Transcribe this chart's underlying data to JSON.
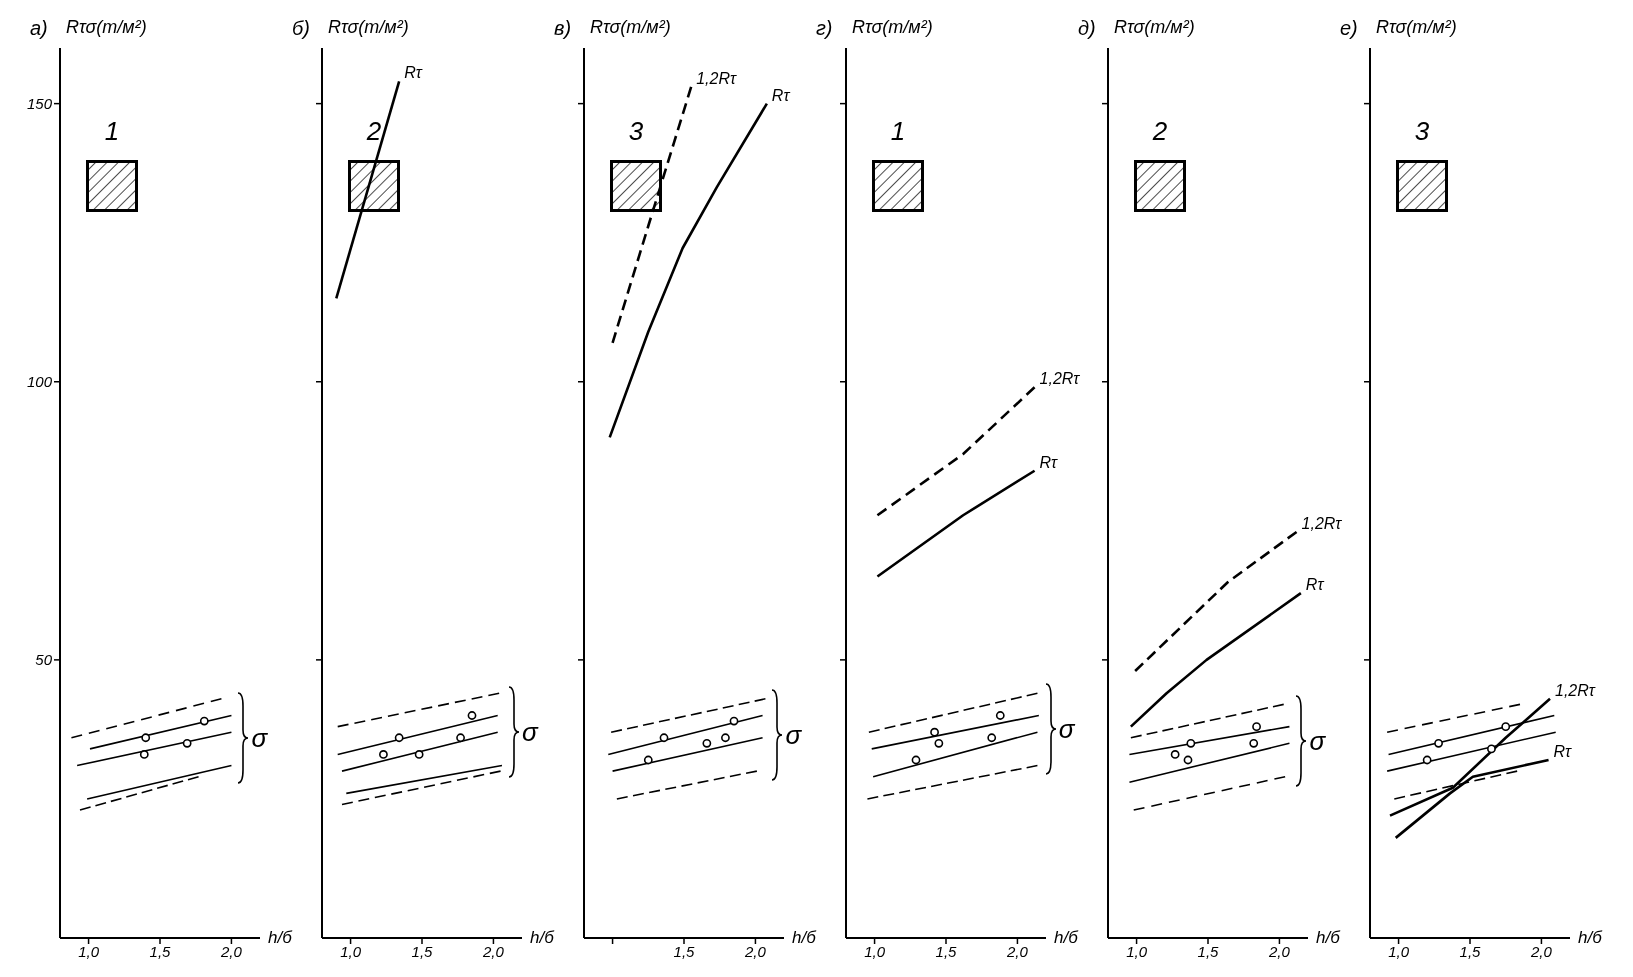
{
  "chart_data": [
    {
      "type": "line",
      "title": "а)",
      "ylabel": "Rτσ(т/м²)",
      "xlabel": "h/б",
      "xlim": [
        0.8,
        2.2
      ],
      "ylim": [
        0,
        160
      ],
      "xticks": [
        {
          "value": 1,
          "label": "1,0"
        },
        {
          "value": 1.5,
          "label": "1,5"
        },
        {
          "value": 2,
          "label": "2,0"
        }
      ],
      "yticks": [
        50,
        100,
        150
      ],
      "annotations": [
        "1",
        "σ"
      ],
      "series": [
        {
          "color": "#000000",
          "line_style": "dashed",
          "x": [
            0.88,
            1.93
          ],
          "values": [
            36,
            43
          ]
        },
        {
          "color": "#000000",
          "x": [
            1.01,
            2.0
          ],
          "values": [
            34,
            40
          ]
        },
        {
          "color": "#000000",
          "x": [
            0.92,
            2.0
          ],
          "values": [
            31,
            37
          ]
        },
        {
          "color": "#000000",
          "x": [
            0.99,
            2.0
          ],
          "values": [
            25,
            31
          ]
        },
        {
          "color": "#000000",
          "line_style": "dashed",
          "x": [
            0.94,
            1.77
          ],
          "values": [
            23,
            29
          ]
        },
        {
          "type": "scatter",
          "marker": "circle",
          "color": "#000000",
          "x": [
            1.39,
            1.4,
            1.69,
            1.81
          ],
          "values": [
            33,
            36,
            35,
            39
          ]
        }
      ]
    },
    {
      "type": "line",
      "title": "б)",
      "ylabel": "Rτσ(т/м²)",
      "xlabel": "h/б",
      "xlim": [
        0.8,
        2.2
      ],
      "ylim": [
        0,
        160
      ],
      "xticks": [
        {
          "value": 1,
          "label": "1,0"
        },
        {
          "value": 1.5,
          "label": "1,5"
        },
        {
          "value": 2,
          "label": "2,0"
        }
      ],
      "yticks": [
        {
          "value": 50,
          "label": null
        },
        {
          "value": 100,
          "label": null
        },
        {
          "value": 150,
          "label": null
        }
      ],
      "tick_labels": "x",
      "annotations": [
        "2",
        "σ"
      ],
      "series": [
        {
          "name": "Rτ",
          "color": "#000000",
          "x": [
            0.9,
            1.34
          ],
          "values": [
            115,
            154
          ]
        },
        {
          "color": "#000000",
          "line_style": "dashed",
          "x": [
            0.91,
            2.04
          ],
          "values": [
            38,
            44
          ]
        },
        {
          "color": "#000000",
          "x": [
            0.91,
            2.03
          ],
          "values": [
            33,
            40
          ]
        },
        {
          "color": "#000000",
          "x": [
            0.94,
            2.03
          ],
          "values": [
            30,
            37
          ]
        },
        {
          "color": "#000000",
          "x": [
            0.97,
            2.06
          ],
          "values": [
            26,
            31
          ]
        },
        {
          "color": "#000000",
          "line_style": "dashed",
          "x": [
            0.94,
            2.05
          ],
          "values": [
            24,
            30
          ]
        },
        {
          "type": "scatter",
          "marker": "circle",
          "color": "#000000",
          "x": [
            1.23,
            1.34,
            1.48,
            1.77,
            1.85
          ],
          "values": [
            33,
            36,
            33,
            36,
            40
          ]
        }
      ]
    },
    {
      "type": "line",
      "title": "в)",
      "ylabel": "Rτσ(т/м²)",
      "xlabel": "h/б",
      "xlim": [
        0.8,
        2.2
      ],
      "ylim": [
        0,
        160
      ],
      "xticks": [
        {
          "value": 1,
          "label": null
        },
        {
          "value": 1.5,
          "label": "1,5"
        },
        {
          "value": 2,
          "label": "2,0"
        }
      ],
      "yticks": [
        {
          "value": 50,
          "label": null
        },
        {
          "value": 100,
          "label": null
        },
        {
          "value": 150,
          "label": null
        }
      ],
      "tick_labels": "x",
      "annotations": [
        "3",
        "σ"
      ],
      "series": [
        {
          "name": "Rτ",
          "color": "#000000",
          "x": [
            0.98,
            1.25,
            1.49,
            1.73,
            2.08
          ],
          "values": [
            90,
            109,
            124,
            135,
            150
          ]
        },
        {
          "name": "1,2Rτ",
          "color": "#000000",
          "line_style": "dashed",
          "x": [
            1.0,
            1.25,
            1.43,
            1.55
          ],
          "values": [
            107,
            128,
            143,
            153
          ]
        },
        {
          "color": "#000000",
          "line_style": "dashed",
          "x": [
            0.99,
            2.07
          ],
          "values": [
            37,
            43
          ]
        },
        {
          "color": "#000000",
          "x": [
            0.97,
            2.05
          ],
          "values": [
            33,
            40
          ]
        },
        {
          "color": "#000000",
          "x": [
            1.0,
            2.05
          ],
          "values": [
            30,
            36
          ]
        },
        {
          "color": "#000000",
          "line_style": "dashed",
          "x": [
            1.03,
            2.01
          ],
          "values": [
            25,
            30
          ]
        },
        {
          "type": "scatter",
          "marker": "circle",
          "color": "#000000",
          "x": [
            1.25,
            1.36,
            1.66,
            1.79,
            1.85
          ],
          "values": [
            32,
            36,
            35,
            36,
            39
          ]
        }
      ]
    },
    {
      "type": "line",
      "title": "г)",
      "ylabel": "Rτσ(т/м²)",
      "xlabel": "h/б",
      "xlim": [
        0.8,
        2.2
      ],
      "ylim": [
        0,
        160
      ],
      "xticks": [
        {
          "value": 1,
          "label": "1,0"
        },
        {
          "value": 1.5,
          "label": "1,5"
        },
        {
          "value": 2,
          "label": "2,0"
        }
      ],
      "yticks": [
        {
          "value": 50,
          "label": null
        },
        {
          "value": 100,
          "label": null
        },
        {
          "value": 150,
          "label": null
        }
      ],
      "tick_labels": "x",
      "annotations": [
        "1",
        "σ"
      ],
      "series": [
        {
          "name": "Rτ",
          "color": "#000000",
          "x": [
            1.02,
            1.62,
            2.12
          ],
          "values": [
            65,
            76,
            84
          ]
        },
        {
          "name": "1,2Rτ",
          "color": "#000000",
          "line_style": "dashed",
          "x": [
            1.02,
            1.62,
            2.12
          ],
          "values": [
            76,
            87,
            99
          ]
        },
        {
          "color": "#000000",
          "line_style": "dashed",
          "x": [
            0.96,
            2.14
          ],
          "values": [
            37,
            44
          ]
        },
        {
          "color": "#000000",
          "x": [
            0.98,
            2.15
          ],
          "values": [
            34,
            40
          ]
        },
        {
          "color": "#000000",
          "x": [
            0.99,
            2.14
          ],
          "values": [
            29,
            37
          ]
        },
        {
          "color": "#000000",
          "line_style": "dashed",
          "x": [
            0.95,
            2.14
          ],
          "values": [
            25,
            31
          ]
        },
        {
          "type": "scatter",
          "marker": "circle",
          "color": "#000000",
          "x": [
            1.29,
            1.42,
            1.45,
            1.82,
            1.88
          ],
          "values": [
            32,
            37,
            35,
            36,
            40
          ]
        }
      ]
    },
    {
      "type": "line",
      "title": "д)",
      "ylabel": "Rτσ(т/м²)",
      "xlabel": "h/б",
      "xlim": [
        0.8,
        2.2
      ],
      "ylim": [
        0,
        160
      ],
      "xticks": [
        {
          "value": 1,
          "label": "1,0"
        },
        {
          "value": 1.5,
          "label": "1,5"
        },
        {
          "value": 2,
          "label": "2,0"
        }
      ],
      "yticks": [
        {
          "value": 50,
          "label": null
        },
        {
          "value": 100,
          "label": null
        },
        {
          "value": 150,
          "label": null
        }
      ],
      "tick_labels": "x",
      "annotations": [
        "2",
        "σ"
      ],
      "series": [
        {
          "name": "Rτ",
          "color": "#000000",
          "x": [
            0.96,
            1.21,
            1.49,
            2.15
          ],
          "values": [
            38,
            44,
            50,
            62
          ]
        },
        {
          "name": "1,2Rτ",
          "color": "#000000",
          "line_style": "dashed",
          "x": [
            0.99,
            1.64,
            2.12
          ],
          "values": [
            48,
            64,
            73
          ]
        },
        {
          "color": "#000000",
          "line_style": "dashed",
          "x": [
            0.96,
            2.03
          ],
          "values": [
            36,
            42
          ]
        },
        {
          "color": "#000000",
          "x": [
            0.95,
            2.07
          ],
          "values": [
            33,
            38
          ]
        },
        {
          "color": "#000000",
          "x": [
            0.95,
            2.07
          ],
          "values": [
            28,
            35
          ]
        },
        {
          "color": "#000000",
          "line_style": "dashed",
          "x": [
            0.98,
            2.04
          ],
          "values": [
            23,
            29
          ]
        },
        {
          "type": "scatter",
          "marker": "circle",
          "color": "#000000",
          "x": [
            1.27,
            1.36,
            1.38,
            1.82,
            1.84
          ],
          "values": [
            33,
            32,
            35,
            35,
            38
          ]
        }
      ]
    },
    {
      "type": "line",
      "title": "е)",
      "ylabel": "Rτσ(т/м²)",
      "xlabel": "h/б",
      "xlim": [
        0.8,
        2.2
      ],
      "ylim": [
        0,
        160
      ],
      "xticks": [
        {
          "value": 1,
          "label": "1,0"
        },
        {
          "value": 1.5,
          "label": "1,5"
        },
        {
          "value": 2,
          "label": "2,0"
        }
      ],
      "yticks": [
        {
          "value": 50,
          "label": null
        },
        {
          "value": 100,
          "label": null
        },
        {
          "value": 150,
          "label": null
        }
      ],
      "tick_labels": "x",
      "annotations": [
        "3"
      ],
      "series": [
        {
          "name": "Rτ",
          "color": "#000000",
          "x": [
            0.98,
            1.36,
            1.52,
            2.05
          ],
          "values": [
            18,
            26,
            29,
            32
          ]
        },
        {
          "name": "1,2Rτ",
          "color": "#000000",
          "x": [
            0.94,
            1.38,
            1.75,
            2.06
          ],
          "values": [
            22,
            27,
            36,
            43
          ]
        },
        {
          "color": "#000000",
          "line_style": "dashed",
          "x": [
            0.92,
            1.85
          ],
          "values": [
            37,
            42
          ]
        },
        {
          "color": "#000000",
          "x": [
            0.93,
            2.09
          ],
          "values": [
            33,
            40
          ]
        },
        {
          "color": "#000000",
          "x": [
            0.92,
            2.1
          ],
          "values": [
            30,
            37
          ]
        },
        {
          "color": "#000000",
          "line_style": "dashed",
          "x": [
            0.97,
            1.83
          ],
          "values": [
            25,
            30
          ]
        },
        {
          "type": "scatter",
          "marker": "circle",
          "color": "#000000",
          "x": [
            1.2,
            1.28,
            1.65,
            1.75
          ],
          "values": [
            32,
            35,
            34,
            38
          ]
        }
      ]
    }
  ]
}
